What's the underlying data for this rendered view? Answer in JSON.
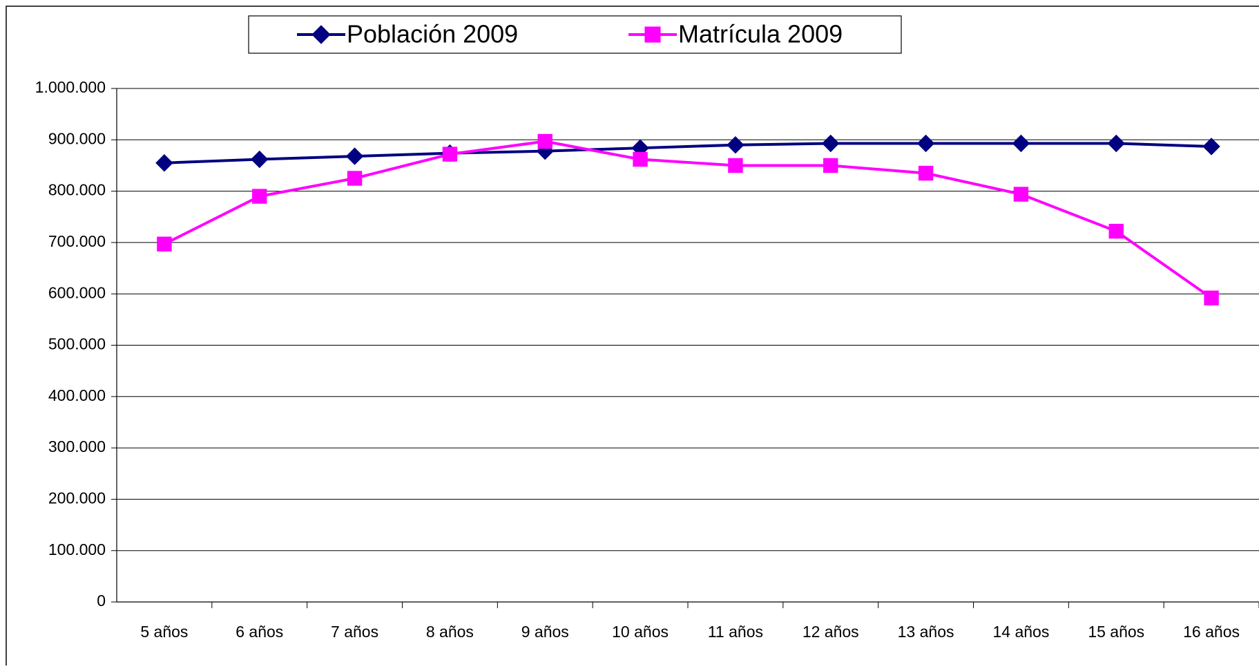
{
  "chart_data": {
    "type": "line",
    "categories": [
      "5 años",
      "6 años",
      "7 años",
      "8 años",
      "9 años",
      "10 años",
      "11 años",
      "12 años",
      "13 años",
      "14 años",
      "15 años",
      "16 años"
    ],
    "series": [
      {
        "name": "Población 2009",
        "color": "#000080",
        "marker": "diamond",
        "values": [
          855000,
          862000,
          868000,
          874000,
          878000,
          884000,
          890000,
          893000,
          893000,
          893000,
          893000,
          887000
        ]
      },
      {
        "name": "Matrícula 2009",
        "color": "#ff00ff",
        "marker": "square",
        "values": [
          697000,
          790000,
          825000,
          872000,
          897000,
          862000,
          850000,
          850000,
          835000,
          794000,
          722000,
          592000
        ]
      }
    ],
    "ylim": [
      0,
      1000000
    ],
    "yticks": [
      0,
      {
        "value": 100000,
        "label": "100.000"
      },
      {
        "value": 200000,
        "label": "200.000"
      },
      {
        "value": 300000,
        "label": "300.000"
      },
      {
        "value": 400000,
        "label": "400.000"
      },
      {
        "value": 500000,
        "label": "500.000"
      },
      {
        "value": 600000,
        "label": "600.000"
      },
      {
        "value": 700000,
        "label": "700.000"
      },
      {
        "value": 800000,
        "label": "800.000"
      },
      {
        "value": 900000,
        "label": "900.000"
      },
      {
        "value": 1000000,
        "label": "1.000.000"
      }
    ],
    "grid": true,
    "legend": "top"
  }
}
